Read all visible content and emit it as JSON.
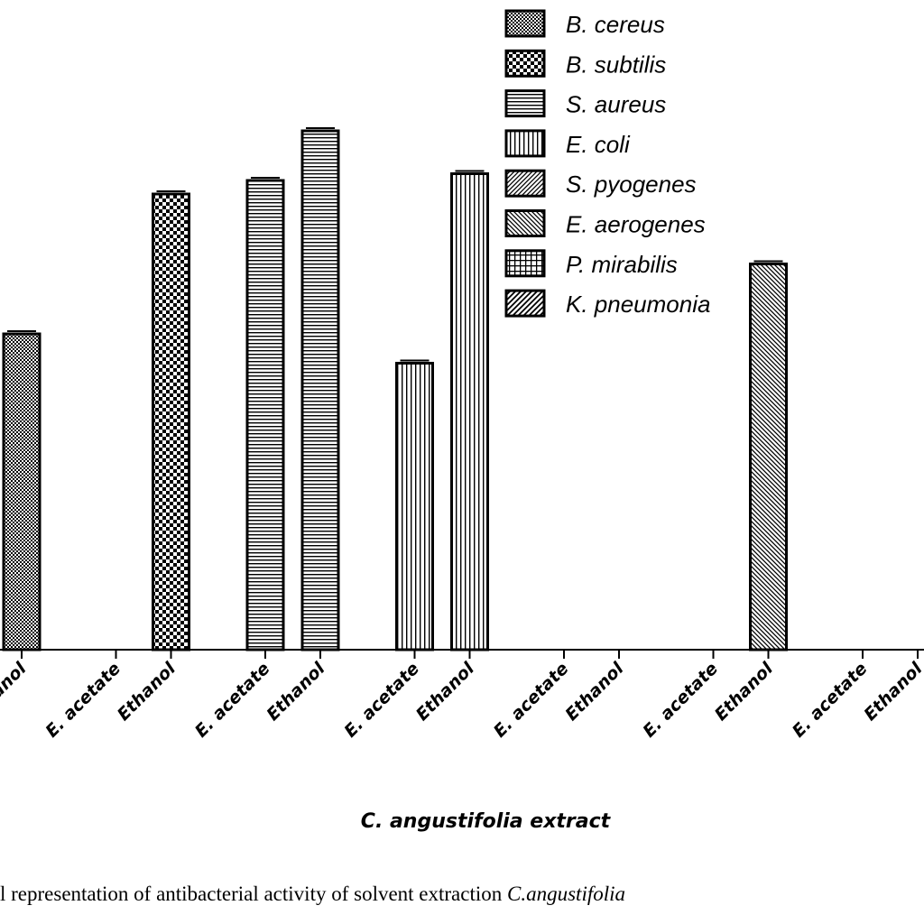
{
  "chart_data": {
    "type": "bar",
    "xlabel": "C. angustifolia extract",
    "groups": [
      {
        "species": "B. cereus",
        "bars": [
          {
            "solvent": "Ethanol",
            "value": 14.0
          }
        ]
      },
      {
        "species": "B. subtilis",
        "bars": [
          {
            "solvent": "E. acetate",
            "value": 0
          },
          {
            "solvent": "Ethanol",
            "value": 20.2
          }
        ]
      },
      {
        "species": "S. aureus",
        "bars": [
          {
            "solvent": "E. acetate",
            "value": 20.8
          },
          {
            "solvent": "Ethanol",
            "value": 23.0
          }
        ]
      },
      {
        "species": "E. coli",
        "bars": [
          {
            "solvent": "E. acetate",
            "value": 12.7
          },
          {
            "solvent": "Ethanol",
            "value": 21.1
          }
        ]
      },
      {
        "species": "S. pyogenes",
        "bars": [
          {
            "solvent": "E. acetate",
            "value": 0
          },
          {
            "solvent": "Ethanol",
            "value": 0
          }
        ]
      },
      {
        "species": "E. aerogenes",
        "bars": [
          {
            "solvent": "E. acetate",
            "value": 0
          },
          {
            "solvent": "Ethanol",
            "value": 17.1
          }
        ]
      },
      {
        "species": "P. mirabilis",
        "bars": [
          {
            "solvent": "E. acetate",
            "value": 0
          },
          {
            "solvent": "Ethanol",
            "value": 0
          }
        ]
      },
      {
        "species": "K. pneumonia",
        "bars": [
          {
            "solvent": "E. acetate",
            "value": 0
          }
        ]
      }
    ],
    "legend": [
      "B. cereus",
      "B. subtilis",
      "S. aureus",
      "E. coli",
      "S. pyogenes",
      "E. aerogenes",
      "P. mirabilis",
      "K. pneumonia"
    ],
    "legend_position": "top-right",
    "ylim": [
      0,
      25
    ],
    "grid": false
  },
  "caption": {
    "text": "l representation of antibacterial activity of solvent extraction ",
    "species": "C.angustifolia"
  }
}
